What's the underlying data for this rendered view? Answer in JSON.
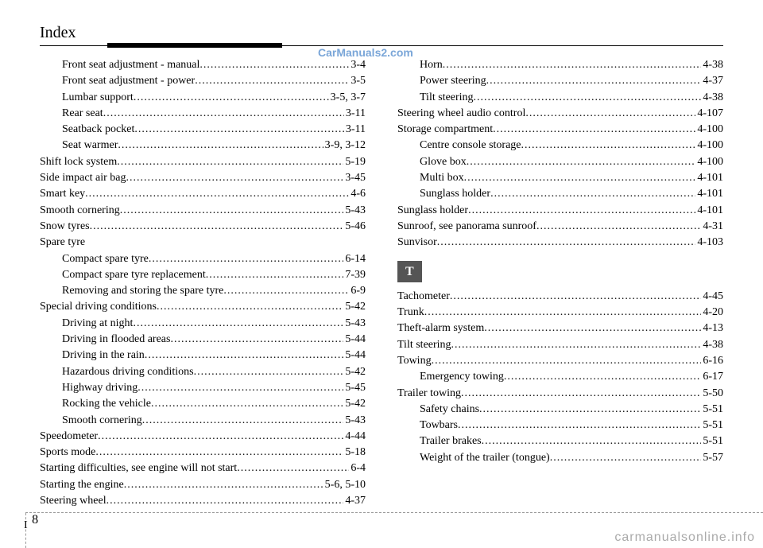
{
  "header": {
    "title": "Index"
  },
  "watermark": "CarManuals2.com",
  "bottom_watermark": "carmanualsonline.info",
  "footer": {
    "section": "I",
    "page": "8"
  },
  "section_letter": "T",
  "left": [
    {
      "label": "Front seat adjustment - manual ",
      "page": "3-4",
      "indent": true
    },
    {
      "label": "Front seat adjustment - power ",
      "page": "3-5",
      "indent": true
    },
    {
      "label": "Lumbar support",
      "page": "3-5, 3-7",
      "indent": true
    },
    {
      "label": "Rear seat ",
      "page": "3-11",
      "indent": true
    },
    {
      "label": "Seatback pocket ",
      "page": "3-11",
      "indent": true
    },
    {
      "label": "Seat warmer ",
      "page": "3-9, 3-12",
      "indent": true
    },
    {
      "label": "Shift lock system ",
      "page": "5-19",
      "indent": false
    },
    {
      "label": "Side impact air bag ",
      "page": "3-45",
      "indent": false
    },
    {
      "label": "Smart key ",
      "page": "4-6",
      "indent": false
    },
    {
      "label": "Smooth cornering",
      "page": "5-43",
      "indent": false
    },
    {
      "label": "Snow tyres ",
      "page": "5-46",
      "indent": false
    },
    {
      "label": "Spare tyre",
      "page": "",
      "indent": false,
      "nodots": true
    },
    {
      "label": "Compact spare tyre",
      "page": "6-14",
      "indent": true
    },
    {
      "label": "Compact spare tyre replacement ",
      "page": "7-39",
      "indent": true
    },
    {
      "label": "Removing and storing the spare tyre ",
      "page": "6-9",
      "indent": true
    },
    {
      "label": "Special driving conditions ",
      "page": "5-42",
      "indent": false
    },
    {
      "label": "Driving at night ",
      "page": "5-43",
      "indent": true
    },
    {
      "label": "Driving in flooded areas",
      "page": "5-44",
      "indent": true
    },
    {
      "label": "Driving in the rain ",
      "page": "5-44",
      "indent": true
    },
    {
      "label": "Hazardous driving conditions ",
      "page": "5-42",
      "indent": true
    },
    {
      "label": "Highway driving",
      "page": "5-45",
      "indent": true
    },
    {
      "label": "Rocking the vehicle ",
      "page": "5-42",
      "indent": true
    },
    {
      "label": "Smooth cornering ",
      "page": "5-43",
      "indent": true
    },
    {
      "label": "Speedometer",
      "page": "4-44",
      "indent": false
    },
    {
      "label": "Sports mode ",
      "page": "5-18",
      "indent": false
    },
    {
      "label": "Starting difficulties, see engine will not start ",
      "page": "6-4",
      "indent": false
    },
    {
      "label": "Starting the engine ",
      "page": "5-6, 5-10",
      "indent": false
    },
    {
      "label": "Steering wheel ",
      "page": "4-37",
      "indent": false
    }
  ],
  "right_top": [
    {
      "label": "Horn ",
      "page": "4-38",
      "indent": true
    },
    {
      "label": "Power steering ",
      "page": "4-37",
      "indent": true
    },
    {
      "label": "Tilt steering ",
      "page": "4-38",
      "indent": true
    },
    {
      "label": "Steering wheel audio control ",
      "page": "4-107",
      "indent": false
    },
    {
      "label": "Storage compartment ",
      "page": "4-100",
      "indent": false
    },
    {
      "label": "Centre console storage ",
      "page": "4-100",
      "indent": true
    },
    {
      "label": "Glove box ",
      "page": "4-100",
      "indent": true
    },
    {
      "label": "Multi box ",
      "page": "4-101",
      "indent": true
    },
    {
      "label": "Sunglass holder ",
      "page": "4-101",
      "indent": true
    },
    {
      "label": "Sunglass holder ",
      "page": "4-101",
      "indent": false
    },
    {
      "label": "Sunroof, see panorama sunroof ",
      "page": "4-31",
      "indent": false
    },
    {
      "label": "Sunvisor ",
      "page": "4-103",
      "indent": false
    }
  ],
  "right_bottom": [
    {
      "label": "Tachometer ",
      "page": "4-45",
      "indent": false
    },
    {
      "label": "Trunk ",
      "page": "4-20",
      "indent": false
    },
    {
      "label": "Theft-alarm system ",
      "page": "4-13",
      "indent": false
    },
    {
      "label": "Tilt steering ",
      "page": "4-38",
      "indent": false
    },
    {
      "label": "Towing ",
      "page": "6-16",
      "indent": false
    },
    {
      "label": "Emergency towing ",
      "page": "6-17",
      "indent": true
    },
    {
      "label": "Trailer towing",
      "page": "5-50",
      "indent": false
    },
    {
      "label": "Safety chains ",
      "page": "5-51",
      "indent": true
    },
    {
      "label": "Towbars ",
      "page": "5-51",
      "indent": true
    },
    {
      "label": "Trailer brakes ",
      "page": "5-51",
      "indent": true
    },
    {
      "label": "Weight of the trailer (tongue)",
      "page": "5-57",
      "indent": true
    }
  ]
}
